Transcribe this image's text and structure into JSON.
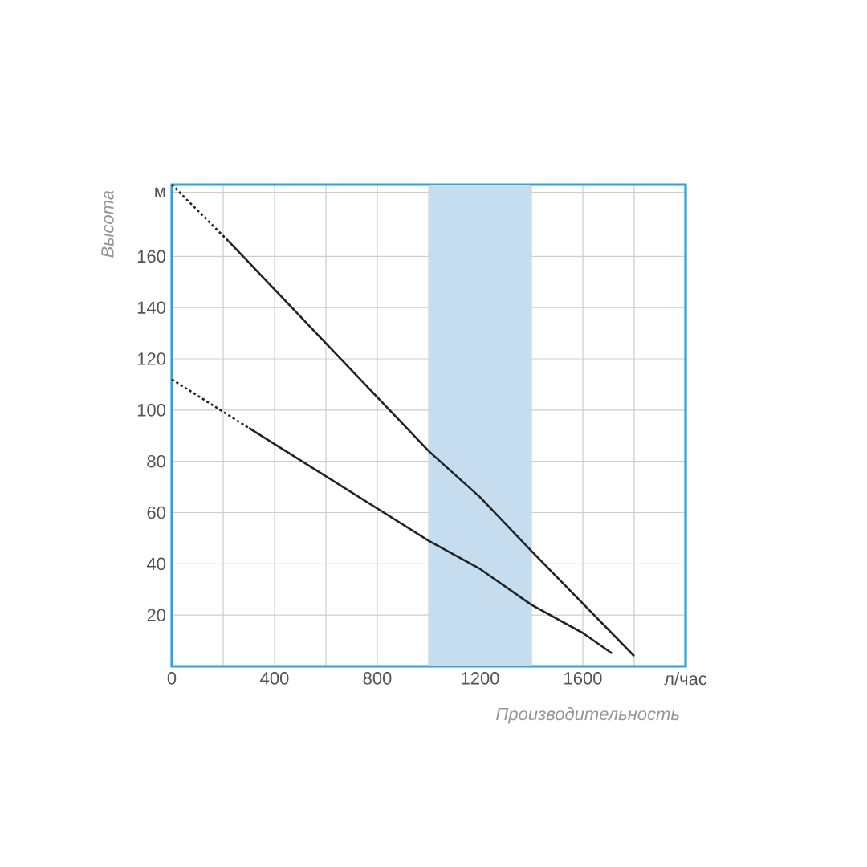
{
  "chart_data": {
    "type": "line",
    "xlabel": "Производительность",
    "ylabel": "Высота",
    "xlim": [
      0,
      2000
    ],
    "ylim": [
      0,
      188
    ],
    "xticks": [
      0,
      {
        "value": 200,
        "label": null
      },
      400,
      {
        "value": 600,
        "label": null
      },
      800,
      {
        "value": 1000,
        "label": null
      },
      1200,
      {
        "value": 1400,
        "label": null
      },
      1600,
      {
        "value": 1800,
        "label": null
      },
      {
        "value": 2000,
        "label": "л/час"
      }
    ],
    "yticks": [
      20,
      40,
      60,
      80,
      100,
      120,
      140,
      160,
      {
        "value": 185,
        "label": "м"
      }
    ],
    "grid": true,
    "bands": [
      {
        "axis": "x",
        "from": 1000,
        "to": 1400,
        "color": "#c6ddef"
      }
    ],
    "series": [
      {
        "color": "#222222",
        "line_style": "dotted",
        "x": [
          0,
          220
        ],
        "values": [
          188,
          166
        ]
      },
      {
        "color": "#222222",
        "line_style": "solid",
        "x": [
          220,
          1000,
          1200,
          1400,
          1800
        ],
        "values": [
          166,
          84,
          66,
          45,
          4
        ]
      },
      {
        "color": "#222222",
        "line_style": "dotted",
        "x": [
          0,
          300
        ],
        "values": [
          112,
          93
        ]
      },
      {
        "color": "#222222",
        "line_style": "solid",
        "x": [
          300,
          1000,
          1200,
          1400,
          1600,
          1714
        ],
        "values": [
          93,
          49,
          38,
          24,
          13,
          5
        ]
      }
    ]
  }
}
